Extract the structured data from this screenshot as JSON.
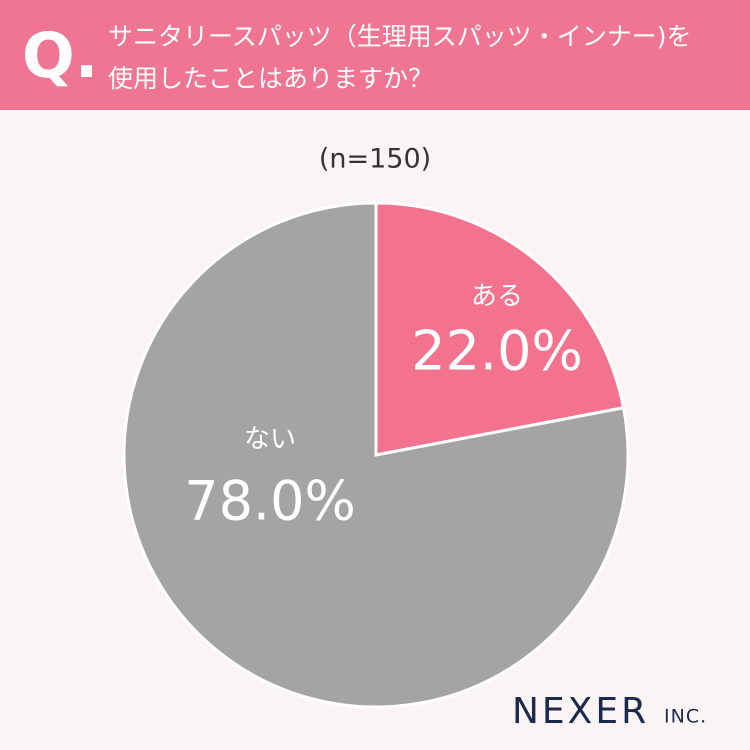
{
  "header": {
    "mark": "Q.",
    "title_lines": [
      "サニタリースパッツ（生理用スパッツ・インナー)を",
      "使用したことはありますか？"
    ]
  },
  "chart_data": {
    "type": "pie",
    "subtitle": "(n=150)",
    "categories": [
      "ある",
      "ない"
    ],
    "values": [
      22.0,
      78.0
    ],
    "value_labels": [
      "22.0%",
      "78.0%"
    ],
    "colors": [
      "#f3728d",
      "#a4a4a4"
    ]
  },
  "logo": {
    "name": "NEXER",
    "suffix": "INC."
  }
}
